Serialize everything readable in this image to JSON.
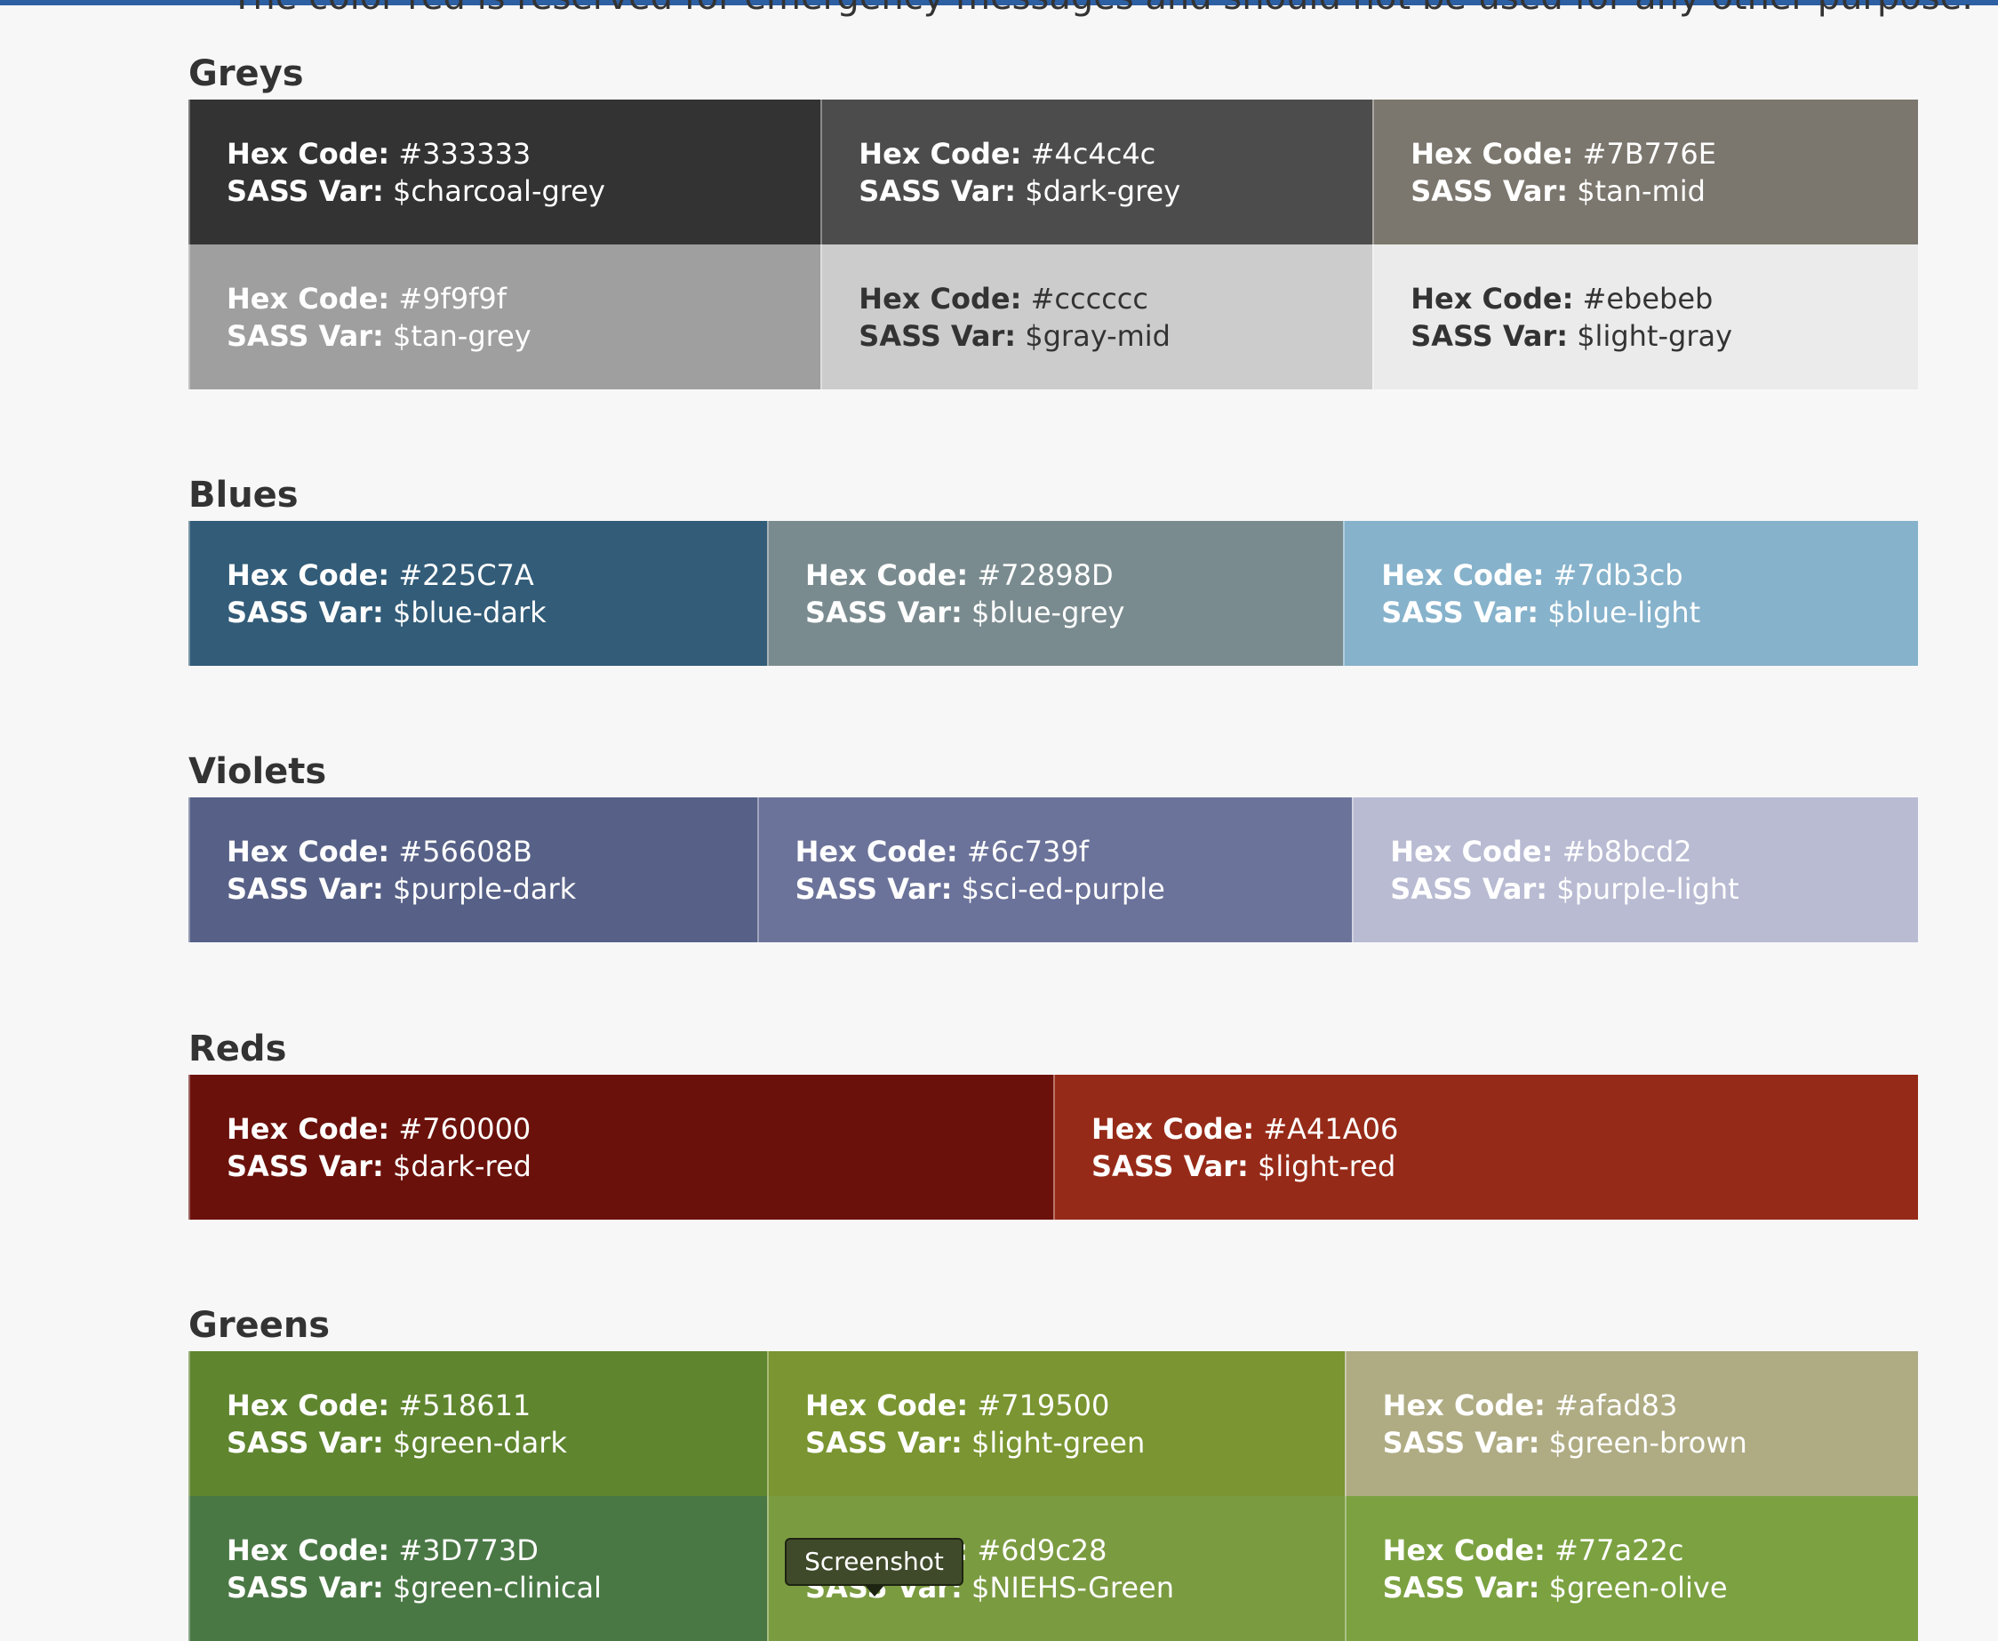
{
  "intro": "The color red is reserved for emergency messages and should not be used for any other purpose.",
  "labels": {
    "hex": "Hex Code:",
    "sass": "SASS Var:"
  },
  "tooltip": "Screenshot",
  "sections": [
    {
      "title": "Greys",
      "swatches": [
        {
          "hex": "#333333",
          "sass": "$charcoal-grey",
          "color": "#333333",
          "text_color": "#ffffff"
        },
        {
          "hex": "#4c4c4c",
          "sass": "$dark-grey",
          "color": "#4c4c4c",
          "text_color": "#ffffff"
        },
        {
          "hex": "#7B776E",
          "sass": "$tan-mid",
          "color": "#7b776e",
          "text_color": "#ffffff"
        },
        {
          "hex": "#9f9f9f",
          "sass": "$tan-grey",
          "color": "#9f9f9f",
          "text_color": "#ffffff"
        },
        {
          "hex": "#cccccc",
          "sass": "$gray-mid",
          "color": "#cccccc",
          "text_color": "#333333"
        },
        {
          "hex": "#ebebeb",
          "sass": "$light-gray",
          "color": "#ebebeb",
          "text_color": "#333333"
        }
      ]
    },
    {
      "title": "Blues",
      "swatches": [
        {
          "hex": "#225C7A",
          "sass": "$blue-dark",
          "color": "#325c78",
          "text_color": "#ffffff"
        },
        {
          "hex": "#72898D",
          "sass": "$blue-grey",
          "color": "#7a8b8f",
          "text_color": "#ffffff"
        },
        {
          "hex": "#7db3cb",
          "sass": "$blue-light",
          "color": "#86b2cb",
          "text_color": "#ffffff"
        }
      ]
    },
    {
      "title": "Violets",
      "swatches": [
        {
          "hex": "#56608B",
          "sass": "$purple-dark",
          "color": "#576187",
          "text_color": "#ffffff"
        },
        {
          "hex": "#6c739f",
          "sass": "$sci-ed-purple",
          "color": "#6c739a",
          "text_color": "#ffffff"
        },
        {
          "hex": "#b8bcd2",
          "sass": "$purple-light",
          "color": "#b8bbd2",
          "text_color": "#ffffff"
        }
      ]
    },
    {
      "title": "Reds",
      "swatches": [
        {
          "hex": "#760000",
          "sass": "$dark-red",
          "color": "#6b110b",
          "text_color": "#ffffff"
        },
        {
          "hex": "#A41A06",
          "sass": "$light-red",
          "color": "#962a18",
          "text_color": "#ffffff"
        }
      ]
    },
    {
      "title": "Greens",
      "swatches": [
        {
          "hex": "#518611",
          "sass": "$green-dark",
          "color": "#5f852f",
          "text_color": "#ffffff"
        },
        {
          "hex": "#719500",
          "sass": "$light-green",
          "color": "#7a9531",
          "text_color": "#ffffff"
        },
        {
          "hex": "#afad83",
          "sass": "$green-brown",
          "color": "#afac84",
          "text_color": "#ffffff"
        },
        {
          "hex": "#3D773D",
          "sass": "$green-clinical",
          "color": "#4a7845",
          "text_color": "#ffffff"
        },
        {
          "hex": "#6d9c28",
          "sass": "$NIEHS-Green",
          "color": "#7b9b41",
          "text_color": "#ffffff"
        },
        {
          "hex": "#77a22c",
          "sass": "$green-olive",
          "color": "#7ba141",
          "text_color": "#ffffff"
        }
      ]
    }
  ]
}
